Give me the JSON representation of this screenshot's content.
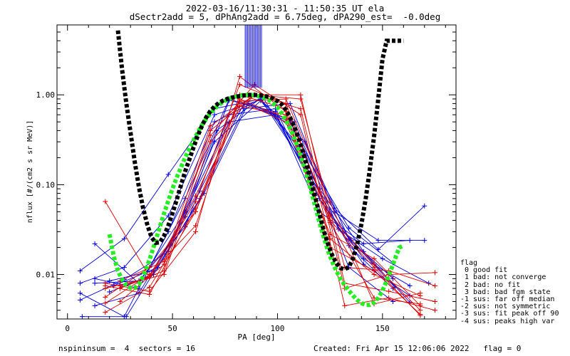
{
  "header": {
    "title_line1": "2022-03-16/11:30:31 - 11:50:35 UT ela",
    "title_line2": "dSectr2add = 5, dPhAng2add = 6.75deg, dPA290_est=  -0.0deg"
  },
  "footer": {
    "left": "nspininsum =  4  sectors = 16",
    "right": "Created: Fri Apr 15 12:06:06 2022   flag = 0"
  },
  "legend": {
    "title": "flag",
    "items": [
      " 0 good fit",
      " 1 bad: not converge",
      " 2 bad: no fit",
      " 3 bad: bad fgm state",
      "-1 sus: far off median",
      "-2 sus: not symmetric",
      "-3 sus: fit peak off 90",
      "-4 sus: peaks high var"
    ]
  },
  "colors": {
    "blue_series": "#0000dd",
    "red_series": "#dd0000",
    "black_fit": "#000000",
    "green_fit": "#22ee22"
  },
  "chart_data": {
    "type": "line",
    "xlabel": "PA [deg]",
    "ylabel": "nflux [#/(cm2 s sr MeV)]",
    "xlim": [
      -5,
      185
    ],
    "ylim": [
      0.0032,
      6.0
    ],
    "yscale": "log",
    "xticks": [
      0,
      50,
      100,
      150
    ],
    "yticks": [
      0.01,
      0.1,
      1.0
    ],
    "ytick_labels": [
      "0.01",
      "0.10",
      "1.00"
    ],
    "series": [
      {
        "color": "blue",
        "x": [
          6,
          27,
          48,
          70,
          92,
          113,
          134,
          155
        ],
        "y": [
          0.011,
          0.025,
          0.13,
          0.7,
          0.9,
          0.22,
          0.033,
          0.0135
        ]
      },
      {
        "color": "blue",
        "x": [
          6,
          27,
          48,
          70,
          92,
          113,
          134,
          155
        ],
        "y": [
          0.008,
          0.012,
          0.045,
          0.6,
          0.88,
          0.3,
          0.025,
          0.009
        ]
      },
      {
        "color": "blue",
        "x": [
          6,
          27,
          48,
          70,
          92,
          113,
          134,
          155
        ],
        "y": [
          0.0062,
          0.0034,
          0.03,
          0.5,
          0.9,
          0.16,
          0.021,
          0.007
        ]
      },
      {
        "color": "blue",
        "x": [
          7,
          28,
          49,
          71,
          93,
          114,
          135,
          156
        ],
        "y": [
          0.0034,
          0.0034,
          0.021,
          0.4,
          0.95,
          0.14,
          0.024,
          0.0072
        ]
      },
      {
        "color": "blue",
        "x": [
          6,
          27,
          48,
          70,
          92,
          113,
          134,
          155
        ],
        "y": [
          0.0052,
          0.0088,
          0.018,
          0.3,
          0.86,
          0.21,
          0.012,
          0.005
        ]
      },
      {
        "color": "blue",
        "x": [
          20,
          41,
          63,
          84,
          106,
          127,
          148,
          170
        ],
        "y": [
          0.0064,
          0.01,
          0.07,
          0.7,
          0.8,
          0.05,
          0.024,
          0.024
        ]
      },
      {
        "color": "blue",
        "x": [
          20,
          41,
          63,
          84,
          106,
          127,
          148,
          170
        ],
        "y": [
          0.0085,
          0.011,
          0.085,
          0.8,
          0.5,
          0.055,
          0.019,
          0.058
        ]
      },
      {
        "color": "blue",
        "x": [
          13,
          34,
          56,
          77,
          99,
          120,
          141,
          163
        ],
        "y": [
          0.0045,
          0.0062,
          0.044,
          0.87,
          0.65,
          0.05,
          0.022,
          0.024
        ]
      },
      {
        "color": "blue",
        "x": [
          13,
          34,
          56,
          77,
          99,
          120,
          141,
          163
        ],
        "y": [
          0.008,
          0.0085,
          0.034,
          0.6,
          0.7,
          0.07,
          0.015,
          0.0075
        ]
      },
      {
        "color": "blue",
        "x": [
          13,
          34,
          56,
          77,
          99,
          120,
          141,
          163
        ],
        "y": [
          0.022,
          0.008,
          0.05,
          0.5,
          0.6,
          0.09,
          0.018,
          0.0049
        ]
      },
      {
        "color": "blue",
        "x": [
          13,
          34,
          56,
          77,
          99,
          120,
          141,
          163
        ],
        "y": [
          0.009,
          0.007,
          0.07,
          0.9,
          0.6,
          0.07,
          0.013,
          0.0058
        ]
      },
      {
        "color": "blue",
        "x": [
          22,
          43,
          65,
          86,
          108,
          129,
          150,
          172
        ],
        "y": [
          0.0075,
          0.012,
          0.08,
          0.8,
          0.5,
          0.032,
          0.015,
          0.008
        ]
      },
      {
        "color": "red",
        "x": [
          18,
          39,
          61,
          82,
          104,
          125,
          146,
          168
        ],
        "y": [
          0.065,
          0.0095,
          0.075,
          0.85,
          0.9,
          0.064,
          0.0047,
          0.0062
        ]
      },
      {
        "color": "red",
        "x": [
          18,
          39,
          61,
          82,
          104,
          125,
          146,
          168
        ],
        "y": [
          0.007,
          0.0092,
          0.065,
          1.3,
          0.8,
          0.04,
          0.012,
          0.0035
        ]
      },
      {
        "color": "red",
        "x": [
          18,
          39,
          61,
          82,
          104,
          125,
          146,
          168
        ],
        "y": [
          0.0048,
          0.01,
          0.035,
          1.0,
          0.7,
          0.045,
          0.013,
          0.004
        ]
      },
      {
        "color": "red",
        "x": [
          18,
          39,
          61,
          82,
          104,
          125,
          146,
          168
        ],
        "y": [
          0.008,
          0.0065,
          0.03,
          1.6,
          0.65,
          0.025,
          0.01,
          0.0058
        ]
      },
      {
        "color": "red",
        "x": [
          18,
          39,
          61,
          82,
          104,
          125,
          146,
          168
        ],
        "y": [
          0.0056,
          0.012,
          0.05,
          0.9,
          0.55,
          0.038,
          0.0055,
          0.0047
        ]
      },
      {
        "color": "red",
        "x": [
          18,
          39,
          61,
          82,
          104,
          125,
          146,
          168
        ],
        "y": [
          0.0038,
          0.0072,
          0.05,
          0.75,
          0.6,
          0.02,
          0.011,
          0.0036
        ]
      },
      {
        "color": "red",
        "x": [
          18,
          39,
          61,
          82,
          104,
          125,
          146,
          168
        ],
        "y": [
          0.0075,
          0.006,
          0.055,
          0.85,
          0.5,
          0.028,
          0.015,
          0.0045
        ]
      },
      {
        "color": "red",
        "x": [
          25,
          46,
          68,
          89,
          111,
          132,
          153,
          175
        ],
        "y": [
          0.007,
          0.011,
          0.4,
          1.0,
          0.7,
          0.007,
          0.01,
          0.0105
        ]
      },
      {
        "color": "red",
        "x": [
          25,
          46,
          68,
          89,
          111,
          132,
          153,
          175
        ],
        "y": [
          0.005,
          0.013,
          0.35,
          1.3,
          0.6,
          0.0045,
          0.0055,
          0.004
        ]
      },
      {
        "color": "red",
        "x": [
          25,
          46,
          68,
          89,
          111,
          132,
          153,
          175
        ],
        "y": [
          0.0085,
          0.014,
          0.45,
          1.0,
          0.9,
          0.012,
          0.011,
          0.0075
        ]
      },
      {
        "color": "red",
        "x": [
          25,
          46,
          68,
          89,
          111,
          132,
          153,
          175
        ],
        "y": [
          0.0075,
          0.01,
          0.3,
          1.0,
          1.0,
          0.008,
          0.0065,
          0.005
        ]
      }
    ],
    "spikes": {
      "color": "blue",
      "x": [
        84.6,
        85.2,
        85.8,
        86.4,
        87.0,
        87.6,
        88.2,
        88.8,
        89.4,
        90.0,
        90.6,
        91.2,
        91.8,
        92.4
      ],
      "y_from": 1.2,
      "y_to": 6.0
    },
    "black_fit": {
      "x": [
        24,
        26,
        28,
        30,
        32,
        34,
        36,
        38,
        40,
        42,
        44,
        46,
        48,
        50,
        52,
        54,
        56,
        58,
        60,
        62,
        64,
        66,
        68,
        70,
        72,
        74,
        76,
        78,
        80,
        82,
        84,
        86,
        88,
        90,
        92,
        94,
        96,
        98,
        100,
        102,
        104,
        106,
        108,
        110,
        112,
        114,
        116,
        118,
        120,
        122,
        124,
        126,
        128,
        130,
        132,
        134,
        136,
        138,
        140,
        142,
        144,
        146,
        148,
        150,
        152,
        154,
        156,
        158,
        160
      ],
      "y": [
        5.2,
        1.9,
        0.8,
        0.38,
        0.18,
        0.095,
        0.055,
        0.036,
        0.026,
        0.0225,
        0.0228,
        0.027,
        0.035,
        0.048,
        0.068,
        0.098,
        0.14,
        0.19,
        0.26,
        0.35,
        0.45,
        0.56,
        0.66,
        0.74,
        0.81,
        0.86,
        0.9,
        0.93,
        0.95,
        0.97,
        0.985,
        0.995,
        1.0,
        0.995,
        0.985,
        0.97,
        0.95,
        0.91,
        0.85,
        0.78,
        0.68,
        0.56,
        0.44,
        0.33,
        0.24,
        0.165,
        0.11,
        0.072,
        0.047,
        0.031,
        0.022,
        0.0165,
        0.0135,
        0.0118,
        0.0114,
        0.0122,
        0.0152,
        0.022,
        0.037,
        0.07,
        0.15,
        0.35,
        0.9,
        2.5,
        4.0,
        4.0,
        4.0,
        4.0,
        4.0
      ]
    },
    "green_fit": {
      "x": [
        20,
        22,
        24,
        26,
        28,
        30,
        32,
        34,
        36,
        38,
        40,
        42,
        44,
        46,
        48,
        50,
        52,
        54,
        56,
        58,
        60,
        62,
        64,
        66,
        68,
        70,
        72,
        74,
        76,
        78,
        80,
        82,
        84,
        86,
        88,
        90,
        92,
        94,
        96,
        98,
        100,
        102,
        104,
        106,
        108,
        110,
        112,
        114,
        116,
        118,
        120,
        122,
        124,
        126,
        128,
        130,
        132,
        134,
        136,
        138,
        140,
        142,
        144,
        146,
        148,
        150,
        152,
        154,
        156,
        158,
        160
      ],
      "y": [
        0.028,
        0.016,
        0.011,
        0.0088,
        0.0076,
        0.0071,
        0.0071,
        0.0078,
        0.0095,
        0.0125,
        0.017,
        0.024,
        0.034,
        0.048,
        0.066,
        0.09,
        0.12,
        0.155,
        0.2,
        0.25,
        0.31,
        0.38,
        0.46,
        0.54,
        0.62,
        0.7,
        0.77,
        0.83,
        0.88,
        0.92,
        0.955,
        0.98,
        0.995,
        1.0,
        0.995,
        0.98,
        0.955,
        0.92,
        0.87,
        0.8,
        0.72,
        0.62,
        0.52,
        0.42,
        0.33,
        0.25,
        0.18,
        0.125,
        0.085,
        0.057,
        0.038,
        0.026,
        0.0185,
        0.014,
        0.011,
        0.009,
        0.0076,
        0.0066,
        0.0058,
        0.0052,
        0.0048,
        0.0046,
        0.0046,
        0.0049,
        0.0055,
        0.0066,
        0.0085,
        0.0112,
        0.015,
        0.02,
        0.021
      ]
    }
  }
}
